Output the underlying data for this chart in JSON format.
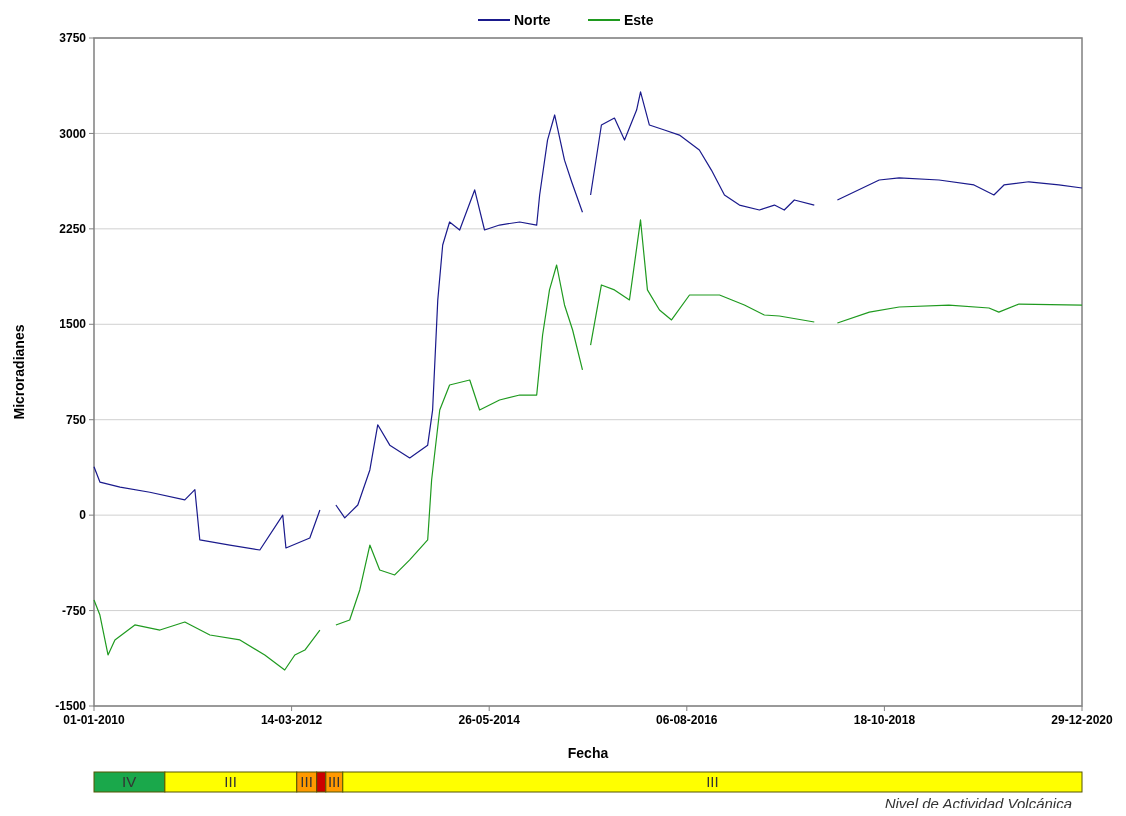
{
  "chart_data": [
    {
      "type": "line",
      "xlabel": "Fecha",
      "ylabel": "Microradianes",
      "legend": "top",
      "grid": "y",
      "line_style": "solid",
      "marker": "none",
      "xlim": [
        "2010-01-01",
        "2020-12-29"
      ],
      "xticks": [
        {
          "value": "2010-01-01",
          "label": "01-01-2010"
        },
        {
          "value": "2012-03-14",
          "label": "14-03-2012"
        },
        {
          "value": "2014-05-26",
          "label": "26-05-2014"
        },
        {
          "value": "2016-08-06",
          "label": "06-08-2016"
        },
        {
          "value": "2018-10-18",
          "label": "18-10-2018"
        },
        {
          "value": "2020-12-29",
          "label": "29-12-2020"
        }
      ],
      "ylim": [
        -1500,
        3750
      ],
      "yticks": [
        -1500,
        -750,
        0,
        750,
        1500,
        2250,
        3000,
        3750
      ],
      "series": [
        {
          "name": "Norte",
          "color": "#1a1a8c",
          "x": [
            "2010-01-01",
            "2010-01-25",
            "2010-04-17",
            "2010-08-16",
            "2011-01-05",
            "2011-02-15",
            "2011-03-07",
            "2011-07-07",
            "2011-11-06",
            "2012-02-07",
            "2012-02-20",
            "2012-05-27",
            "2012-07-07",
            "2012-08-10",
            "2012-09-10",
            "2012-10-16",
            "2012-12-08",
            "2013-01-26",
            "2013-02-27",
            "2013-04-17",
            "2013-07-07",
            "2013-09-18",
            "2013-10-08",
            "2013-10-29",
            "2013-11-18",
            "2013-12-16",
            "2014-01-26",
            "2014-03-28",
            "2014-05-07",
            "2014-07-07",
            "2014-09-27",
            "2014-12-05",
            "2014-12-17",
            "2015-01-18",
            "2015-02-16",
            "2015-03-28",
            "2015-04-26",
            "2015-06-09",
            "2015-06-25",
            "2015-07-12",
            "2015-08-25",
            "2015-10-17",
            "2015-11-27",
            "2016-01-15",
            "2016-01-31",
            "2016-03-07",
            "2016-05-07",
            "2016-07-07",
            "2016-09-26",
            "2016-11-14",
            "2017-01-06",
            "2017-03-08",
            "2017-05-28",
            "2017-07-28",
            "2017-09-06",
            "2017-10-17",
            "2018-01-06",
            "2018-02-20",
            "2018-04-10",
            "2018-09-27",
            "2018-12-17",
            "2019-05-28",
            "2019-10-17",
            "2020-01-06",
            "2020-02-16",
            "2020-05-27",
            "2020-09-26",
            "2020-12-29"
          ],
          "values": [
            380,
            260,
            220,
            180,
            120,
            200,
            -195,
            -235,
            -274,
            0,
            -258,
            -180,
            40,
            null,
            80,
            -22,
            80,
            355,
            710,
            550,
            450,
            550,
            826,
            1690,
            2123,
            2304,
            2241,
            2556,
            2241,
            2280,
            2304,
            2280,
            2516,
            2948,
            3145,
            2790,
            2620,
            2380,
            null,
            2516,
            3066,
            3121,
            2948,
            3184,
            3326,
            3066,
            3027,
            2987,
            2870,
            2712,
            2516,
            2437,
            2398,
            2437,
            2398,
            2477,
            2437,
            null,
            2477,
            2634,
            2650,
            2634,
            2595,
            2516,
            2595,
            2620,
            2595,
            2571
          ]
        },
        {
          "name": "Este",
          "color": "#1f9a1f",
          "x": [
            "2010-01-01",
            "2010-01-25",
            "2010-02-27",
            "2010-03-27",
            "2010-06-16",
            "2010-09-26",
            "2011-01-05",
            "2011-04-17",
            "2011-08-17",
            "2011-11-26",
            "2012-02-15",
            "2012-03-27",
            "2012-05-07",
            "2012-07-07",
            "2012-08-10",
            "2012-09-10",
            "2012-11-05",
            "2012-12-16",
            "2013-01-26",
            "2013-03-07",
            "2013-05-07",
            "2013-07-07",
            "2013-09-18",
            "2013-10-04",
            "2013-11-06",
            "2013-12-16",
            "2014-03-08",
            "2014-04-17",
            "2014-07-07",
            "2014-09-27",
            "2014-12-05",
            "2014-12-29",
            "2015-01-26",
            "2015-02-24",
            "2015-03-28",
            "2015-04-30",
            "2015-06-09",
            "2015-06-25",
            "2015-07-12",
            "2015-08-25",
            "2015-10-17",
            "2015-12-17",
            "2016-01-31",
            "2016-02-28",
            "2016-04-17",
            "2016-06-05",
            "2016-08-17",
            "2016-12-17",
            "2017-03-28",
            "2017-06-17",
            "2017-08-17",
            "2018-01-06",
            "2018-02-20",
            "2018-04-10",
            "2018-08-18",
            "2018-12-17",
            "2019-07-07",
            "2019-12-17",
            "2020-01-26",
            "2020-04-17",
            "2020-12-29"
          ],
          "values": [
            -667,
            -785,
            -1099,
            -981,
            -863,
            -903,
            -840,
            -942,
            -981,
            -1099,
            -1217,
            -1099,
            -1060,
            -903,
            null,
            -863,
            -824,
            -588,
            -235,
            -431,
            -470,
            -352,
            -195,
            276,
            826,
            1023,
            1062,
            826,
            905,
            944,
            944,
            1416,
            1770,
            1966,
            1652,
            1455,
            1141,
            null,
            1337,
            1809,
            1770,
            1691,
            2320,
            1770,
            1612,
            1534,
            1730,
            1730,
            1652,
            1573,
            1565,
            1518,
            null,
            1510,
            1596,
            1636,
            1651,
            1628,
            1596,
            1659,
            1651
          ]
        }
      ],
      "annotations": [
        "IV",
        "III",
        "III",
        "III",
        "III",
        "Nivel de Actividad Volcánica"
      ]
    }
  ]
}
